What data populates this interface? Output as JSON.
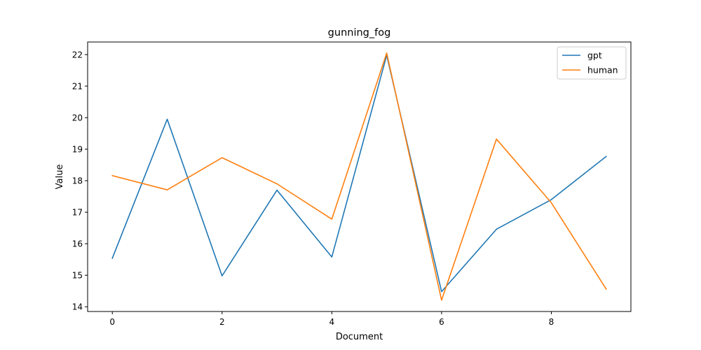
{
  "chart_data": {
    "type": "line",
    "title": "gunning_fog",
    "xlabel": "Document",
    "ylabel": "Value",
    "x": [
      0,
      1,
      2,
      3,
      4,
      5,
      6,
      7,
      8,
      9
    ],
    "xlim": [
      -0.45,
      9.45
    ],
    "ylim": [
      13.85,
      22.4
    ],
    "xticks": [
      0,
      2,
      4,
      6,
      8
    ],
    "yticks": [
      14,
      15,
      16,
      17,
      18,
      19,
      20,
      21,
      22
    ],
    "grid": false,
    "legend_position": "top-right",
    "series": [
      {
        "name": "gpt",
        "color": "#1f77b4",
        "values": [
          15.54,
          19.95,
          14.98,
          17.7,
          15.58,
          21.98,
          14.48,
          16.46,
          17.4,
          18.77
        ]
      },
      {
        "name": "human",
        "color": "#ff7f0e",
        "values": [
          18.16,
          17.71,
          18.73,
          17.9,
          16.78,
          22.05,
          14.21,
          19.32,
          17.3,
          14.56
        ]
      }
    ]
  }
}
